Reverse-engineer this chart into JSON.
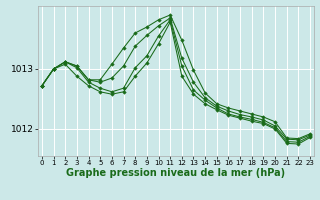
{
  "background_color": "#cce8e8",
  "grid_color": "#ffffff",
  "line_color": "#1a6b1a",
  "marker_color": "#1a6b1a",
  "xlabel": "Graphe pression niveau de la mer (hPa)",
  "xlabel_fontsize": 7,
  "yticks": [
    1012,
    1013
  ],
  "ylim": [
    1011.55,
    1014.05
  ],
  "xlim": [
    -0.3,
    23.3
  ],
  "xticks": [
    0,
    1,
    2,
    3,
    4,
    5,
    6,
    7,
    8,
    9,
    10,
    11,
    12,
    13,
    14,
    15,
    16,
    17,
    18,
    19,
    20,
    21,
    22,
    23
  ],
  "xtick_fontsize": 5,
  "ytick_fontsize": 6.5,
  "series": [
    [
      1012.72,
      1013.0,
      1013.12,
      1013.05,
      1012.82,
      1012.82,
      1013.08,
      1013.35,
      1013.6,
      1013.7,
      1013.82,
      1013.9,
      1013.48,
      1012.98,
      1012.6,
      1012.42,
      1012.35,
      1012.3,
      1012.25,
      1012.2,
      1012.12,
      1011.85,
      1011.84,
      1011.92
    ],
    [
      1012.72,
      1013.0,
      1013.12,
      1013.05,
      1012.82,
      1012.78,
      1012.85,
      1013.05,
      1013.38,
      1013.56,
      1013.72,
      1013.85,
      1013.18,
      1012.78,
      1012.52,
      1012.38,
      1012.3,
      1012.24,
      1012.2,
      1012.15,
      1012.05,
      1011.83,
      1011.82,
      1011.9
    ],
    [
      1012.72,
      1013.0,
      1013.12,
      1013.02,
      1012.78,
      1012.68,
      1012.62,
      1012.68,
      1013.02,
      1013.22,
      1013.55,
      1013.82,
      1013.05,
      1012.65,
      1012.48,
      1012.35,
      1012.25,
      1012.2,
      1012.16,
      1012.11,
      1012.02,
      1011.79,
      1011.78,
      1011.88
    ],
    [
      1012.72,
      1013.0,
      1013.08,
      1012.88,
      1012.72,
      1012.62,
      1012.58,
      1012.62,
      1012.88,
      1013.1,
      1013.42,
      1013.78,
      1012.88,
      1012.58,
      1012.42,
      1012.32,
      1012.23,
      1012.18,
      1012.13,
      1012.09,
      1012.0,
      1011.76,
      1011.75,
      1011.86
    ]
  ]
}
